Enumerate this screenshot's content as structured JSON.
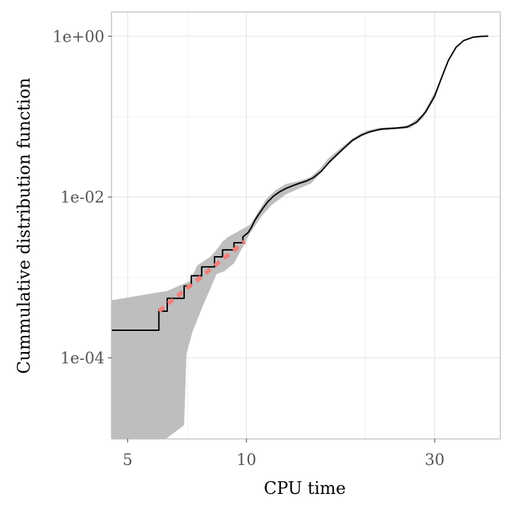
{
  "chart_data": {
    "type": "line",
    "title": "",
    "xlabel": "CPU time",
    "ylabel": "Cummulative distribution function",
    "x_scale": "log10",
    "y_scale": "log10",
    "xlim": [
      4.55,
      44.0
    ],
    "ylim": [
      9.8e-06,
      2.0
    ],
    "x_ticks": [
      {
        "value": 5,
        "label": "5"
      },
      {
        "value": 10,
        "label": "10"
      },
      {
        "value": 30,
        "label": "30"
      }
    ],
    "y_ticks": [
      {
        "value": 0.0001,
        "label": "1e-04"
      },
      {
        "value": 0.01,
        "label": "1e-02"
      },
      {
        "value": 1,
        "label": "1e+00"
      }
    ],
    "x_minor_gridlines": [
      7.1,
      20.0
    ],
    "y_minor_gridlines": [
      0.001,
      0.1
    ],
    "grid": true,
    "legend": "none",
    "colors": {
      "panel_border": "#b8b8b8",
      "grid_major": "#e4e4e4",
      "grid_minor": "#f0f0f0",
      "band": "#bebebe",
      "ecdf": "#000000",
      "fit": "#f07f78",
      "tick_text": "#555555",
      "title_text": "#000000"
    },
    "series": [
      {
        "name": "confidence-band",
        "kind": "area",
        "upper": [
          [
            4.55,
            0.00052
          ],
          [
            6.3,
            0.00068
          ],
          [
            7.2,
            0.0009
          ],
          [
            7.5,
            0.0014
          ],
          [
            8.1,
            0.0018
          ],
          [
            8.4,
            0.0022
          ],
          [
            8.7,
            0.0028
          ],
          [
            9.0,
            0.0032
          ],
          [
            9.4,
            0.0036
          ],
          [
            10.2,
            0.0045
          ],
          [
            10.6,
            0.006
          ],
          [
            11.2,
            0.0093
          ],
          [
            11.8,
            0.012
          ],
          [
            12.6,
            0.0145
          ],
          [
            13.6,
            0.0158
          ],
          [
            14.5,
            0.0175
          ],
          [
            15.3,
            0.022
          ],
          [
            16.1,
            0.03
          ],
          [
            17.6,
            0.043
          ],
          [
            18.6,
            0.054
          ],
          [
            20.0,
            0.066
          ],
          [
            21.5,
            0.072
          ],
          [
            24.5,
            0.075
          ],
          [
            26.0,
            0.08
          ],
          [
            28.0,
            0.108
          ],
          [
            30.0,
            0.2
          ],
          [
            32.0,
            0.4
          ],
          [
            34.0,
            0.7
          ],
          [
            36.0,
            0.9
          ],
          [
            40.0,
            1.0
          ]
        ],
        "lower": [
          [
            40.0,
            1.0
          ],
          [
            36.0,
            0.9
          ],
          [
            34.0,
            0.7
          ],
          [
            32.0,
            0.4
          ],
          [
            30.0,
            0.17
          ],
          [
            28.0,
            0.095
          ],
          [
            26.0,
            0.072
          ],
          [
            24.5,
            0.07
          ],
          [
            21.5,
            0.067
          ],
          [
            20.0,
            0.06
          ],
          [
            18.6,
            0.049
          ],
          [
            17.6,
            0.038
          ],
          [
            16.1,
            0.026
          ],
          [
            15.3,
            0.019
          ],
          [
            14.6,
            0.0148
          ],
          [
            13.6,
            0.0128
          ],
          [
            12.6,
            0.0108
          ],
          [
            11.6,
            0.008
          ],
          [
            10.9,
            0.0057
          ],
          [
            10.2,
            0.0035
          ],
          [
            9.7,
            0.0022
          ],
          [
            9.3,
            0.0015
          ],
          [
            8.8,
            0.0012
          ],
          [
            8.4,
            0.0011
          ],
          [
            8.1,
            0.00072
          ],
          [
            7.75,
            0.00044
          ],
          [
            7.3,
            0.00021
          ],
          [
            7.05,
            0.000112
          ],
          [
            6.95,
            1.45e-05
          ],
          [
            6.25,
            9.8e-06
          ],
          [
            4.55,
            9.8e-06
          ]
        ]
      },
      {
        "name": "empirical-cdf",
        "kind": "step",
        "points": [
          [
            4.55,
            0.00022
          ],
          [
            6.0,
            0.00022
          ],
          [
            6.0,
            0.00038
          ],
          [
            6.3,
            0.00038
          ],
          [
            6.3,
            0.00055
          ],
          [
            6.95,
            0.00055
          ],
          [
            6.95,
            0.00078
          ],
          [
            7.25,
            0.00078
          ],
          [
            7.25,
            0.00105
          ],
          [
            7.7,
            0.00105
          ],
          [
            7.7,
            0.00135
          ],
          [
            8.3,
            0.00135
          ],
          [
            8.3,
            0.0018
          ],
          [
            8.7,
            0.0018
          ],
          [
            8.7,
            0.0022
          ],
          [
            9.3,
            0.0022
          ],
          [
            9.3,
            0.0027
          ],
          [
            9.8,
            0.0027
          ],
          [
            9.8,
            0.0032
          ],
          [
            10.1,
            0.0036
          ],
          [
            10.3,
            0.0042
          ],
          [
            10.5,
            0.0051
          ],
          [
            10.7,
            0.0059
          ],
          [
            11.0,
            0.0072
          ],
          [
            11.3,
            0.0086
          ],
          [
            11.7,
            0.0102
          ],
          [
            12.1,
            0.0115
          ],
          [
            12.6,
            0.0128
          ],
          [
            13.1,
            0.0138
          ],
          [
            13.6,
            0.0148
          ],
          [
            14.2,
            0.0158
          ],
          [
            14.8,
            0.0175
          ],
          [
            15.5,
            0.021
          ],
          [
            16.2,
            0.027
          ],
          [
            17.0,
            0.034
          ],
          [
            17.8,
            0.042
          ],
          [
            18.6,
            0.051
          ],
          [
            19.6,
            0.059
          ],
          [
            20.6,
            0.065
          ],
          [
            22.0,
            0.07
          ],
          [
            24.0,
            0.072
          ],
          [
            25.5,
            0.074
          ],
          [
            27.0,
            0.085
          ],
          [
            28.5,
            0.115
          ],
          [
            30.0,
            0.18
          ],
          [
            31.2,
            0.3
          ],
          [
            32.5,
            0.5
          ],
          [
            34.0,
            0.73
          ],
          [
            35.5,
            0.88
          ],
          [
            37.5,
            0.97
          ],
          [
            39.5,
            0.995
          ],
          [
            41.0,
            1.0
          ]
        ]
      },
      {
        "name": "fitted-line",
        "kind": "dashed-line",
        "points": [
          [
            6.0,
            0.00038
          ],
          [
            9.9,
            0.0028
          ]
        ]
      }
    ]
  }
}
